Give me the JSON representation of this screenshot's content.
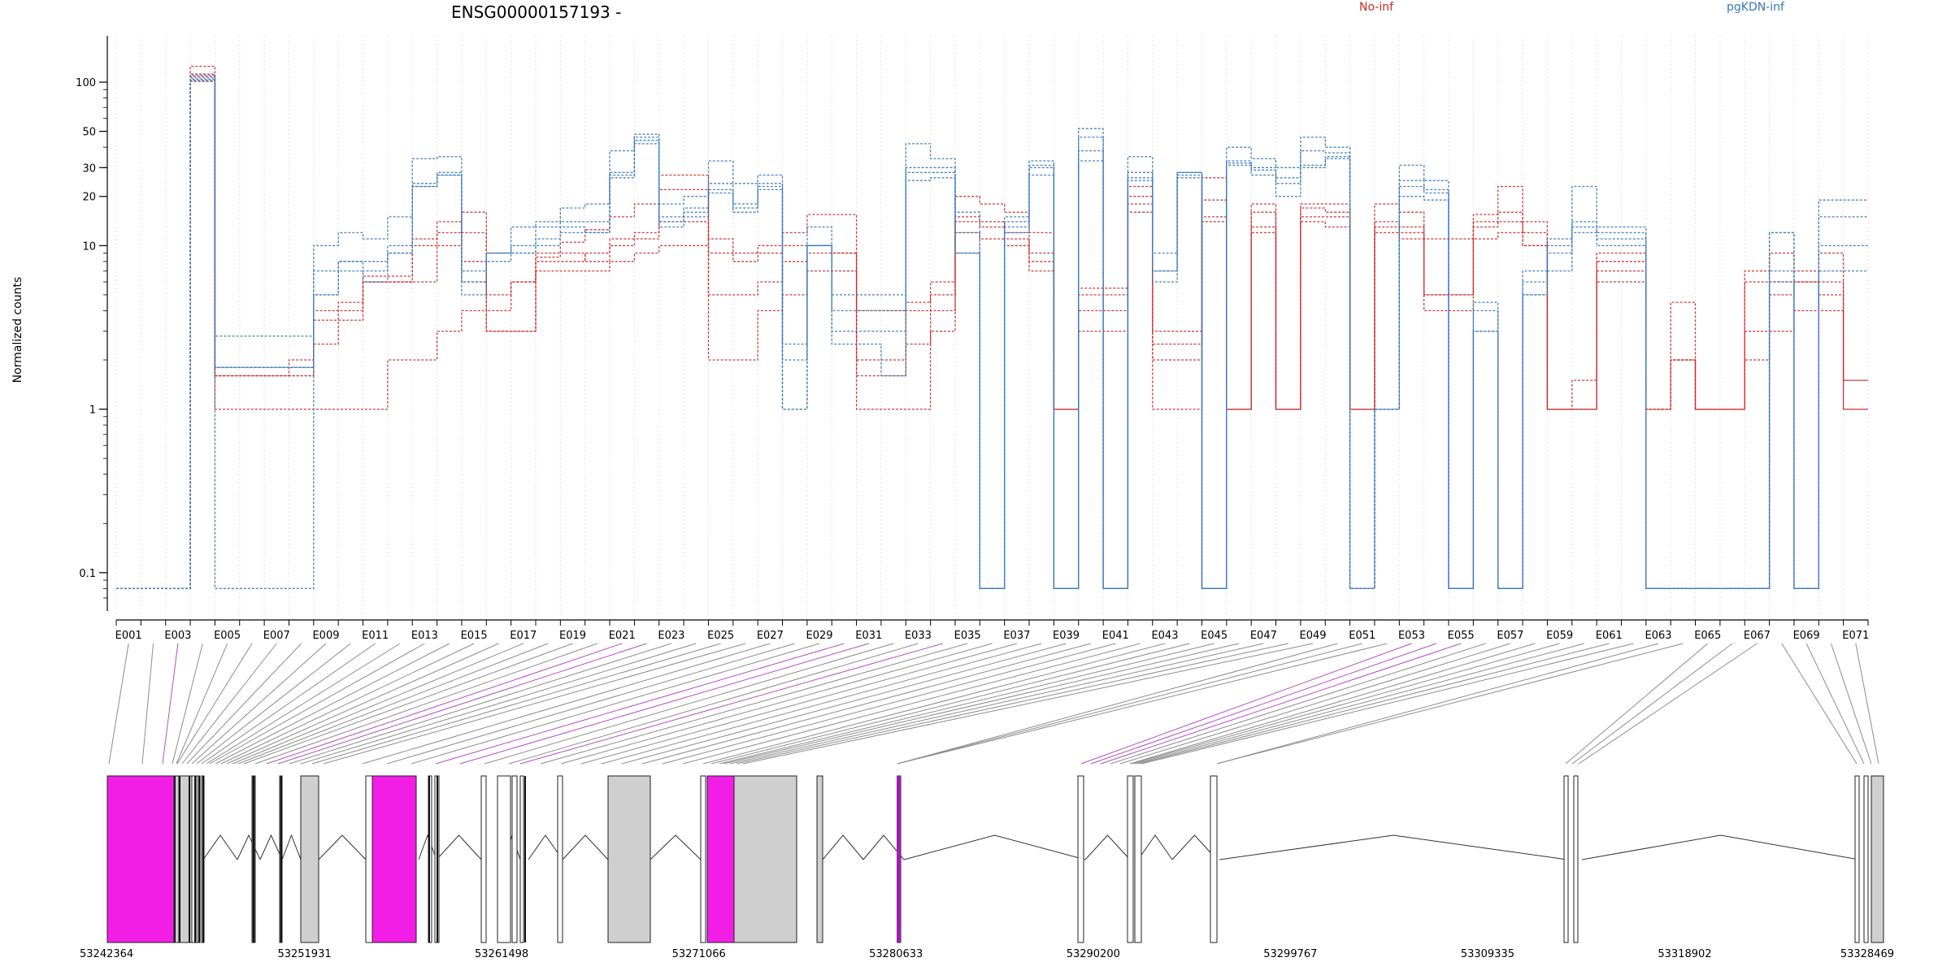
{
  "chart_data": {
    "type": "line",
    "title": "ENSG00000157193 -",
    "ylabel": "Normalized counts",
    "y_scale": "log",
    "ylim": [
      0.07,
      160
    ],
    "y_ticks": [
      {
        "value": 100,
        "label": "100"
      },
      {
        "value": 50,
        "label": "50"
      },
      {
        "value": 30,
        "label": "30"
      },
      {
        "value": 20,
        "label": "20"
      },
      {
        "value": 10,
        "label": "10"
      },
      {
        "value": 1,
        "label": "1"
      },
      {
        "value": 0.1,
        "label": "0.1"
      }
    ],
    "grid": "vertical dotted at each exon boundary",
    "legend": [
      {
        "name": "No-inf",
        "color": "#cc2a2a",
        "position": "top-center"
      },
      {
        "name": "pgKDN-inf",
        "color": "#3a78b8",
        "position": "top-right"
      }
    ],
    "exon_labels": [
      "E001",
      "E003",
      "E005",
      "E007",
      "E009",
      "E011",
      "E013",
      "E015",
      "E017",
      "E019",
      "E021",
      "E023",
      "E025",
      "E027",
      "E029",
      "E031",
      "E033",
      "E035",
      "E037",
      "E039",
      "E041",
      "E043",
      "E045",
      "E047",
      "E049",
      "E051",
      "E053",
      "E055",
      "E057",
      "E059",
      "E061",
      "E063",
      "E065",
      "E067",
      "E069",
      "E071"
    ],
    "exon_count": 71,
    "series": [
      {
        "group": "No-inf",
        "color": "#cc2a2a",
        "values": [
          0.08,
          0.08,
          0.08,
          125,
          1.6,
          1.6,
          1.6,
          1.6,
          3.5,
          3.5,
          6.5,
          6.5,
          11,
          14,
          8,
          4,
          6,
          8.5,
          10.5,
          12.5,
          15,
          18,
          27,
          27,
          11,
          8,
          10,
          12,
          15.5,
          15.5,
          4,
          4,
          4.5,
          6,
          20,
          18,
          16,
          12,
          1,
          5.5,
          5.5,
          23,
          3,
          3,
          26,
          1,
          18,
          1,
          18,
          18,
          1,
          14,
          13,
          11,
          11,
          15.5,
          23,
          14,
          1,
          1.5,
          8,
          8,
          1,
          4.5,
          1,
          1,
          7,
          9,
          7,
          9,
          1.5
        ]
      },
      {
        "group": "No-inf",
        "color": "#cc2a2a",
        "values": [
          0.08,
          0.08,
          0.08,
          112,
          1.6,
          1.6,
          1.6,
          2,
          4,
          4,
          6,
          6,
          6,
          10,
          12,
          3,
          3,
          8,
          8,
          9,
          10,
          11,
          22,
          22,
          9,
          9,
          9,
          10,
          10,
          9,
          2,
          2,
          2.5,
          5,
          15,
          14,
          12,
          9,
          1,
          5,
          5,
          20,
          2,
          2,
          19,
          1,
          16,
          1,
          17,
          16,
          1,
          18,
          16,
          5,
          5,
          13,
          14,
          10,
          1,
          1,
          9,
          9,
          1,
          2,
          1,
          1,
          6,
          6,
          6,
          6,
          1.5
        ]
      },
      {
        "group": "No-inf",
        "color": "#cc2a2a",
        "values": [
          0.08,
          0.08,
          0.08,
          108,
          1,
          1,
          1,
          1,
          1,
          1,
          1,
          2,
          2,
          3,
          4,
          3,
          3,
          7,
          7,
          7,
          8,
          9,
          10,
          10,
          2,
          2,
          4,
          5,
          7,
          7,
          1,
          1,
          1,
          3,
          12,
          11,
          10,
          8,
          1,
          3,
          3,
          16,
          1,
          1,
          15,
          1,
          13,
          1,
          14,
          13,
          1,
          13,
          12,
          4,
          4,
          11,
          12,
          10,
          1,
          1,
          7,
          7,
          1,
          2,
          1,
          1,
          2,
          3,
          4,
          5,
          1
        ]
      },
      {
        "group": "No-inf",
        "color": "#cc2a2a",
        "values": [
          0.08,
          0.08,
          0.08,
          102,
          1.6,
          1.6,
          1.6,
          1.6,
          2.5,
          4.5,
          6,
          6,
          10,
          12,
          16,
          5,
          6,
          9,
          9,
          8,
          11,
          12,
          14,
          14,
          5,
          5,
          6,
          8,
          9,
          9,
          1.6,
          1.6,
          4,
          4,
          14,
          13,
          11,
          7,
          1,
          4,
          4,
          18,
          2.5,
          2.5,
          14,
          1,
          12,
          1,
          15,
          15,
          1,
          12,
          11,
          5,
          5,
          14,
          16,
          12,
          1,
          1,
          6,
          6,
          1,
          2,
          1,
          1,
          3,
          5,
          6,
          4,
          1
        ]
      },
      {
        "group": "pgKDN-inf",
        "color": "#3a78b8",
        "values": [
          0.08,
          0.08,
          0.08,
          110,
          2.8,
          2.8,
          2.8,
          2.8,
          10,
          12,
          11,
          15,
          34,
          35,
          7,
          9,
          13,
          14,
          17,
          18,
          38,
          48,
          18,
          20,
          33,
          24,
          27,
          2.5,
          13,
          5,
          5,
          5,
          42,
          34,
          16,
          0.08,
          15,
          33,
          0.08,
          52,
          0.08,
          35,
          9,
          28,
          0.08,
          40,
          34,
          30,
          46,
          40,
          0.08,
          1,
          31,
          25,
          0.08,
          4.5,
          0.08,
          7,
          11,
          23,
          13,
          13,
          0.08,
          0.08,
          0.08,
          0.08,
          0.08,
          12,
          0.08,
          19,
          19
        ]
      },
      {
        "group": "pgKDN-inf",
        "color": "#3a78b8",
        "values": [
          0.08,
          0.08,
          0.08,
          106,
          1.8,
          1.8,
          1.8,
          1.8,
          7,
          8,
          8,
          10,
          23,
          27,
          6,
          9,
          10,
          13,
          14,
          14,
          28,
          46,
          15,
          17,
          24,
          18,
          24,
          2,
          10,
          4,
          4,
          4,
          30,
          30,
          12,
          0.08,
          14,
          31,
          0.08,
          46,
          0.08,
          28,
          7,
          28,
          0.08,
          33,
          30,
          26,
          38,
          37,
          0.08,
          1,
          25,
          22,
          0.08,
          4,
          0.08,
          6,
          10,
          14,
          12,
          12,
          0.08,
          0.08,
          0.08,
          0.08,
          0.08,
          12,
          0.08,
          15,
          15
        ]
      },
      {
        "group": "pgKDN-inf",
        "color": "#3a78b8",
        "values": [
          0.08,
          0.08,
          0.08,
          104,
          0.08,
          0.08,
          0.08,
          0.08,
          5,
          8,
          7,
          9,
          24,
          28,
          6,
          9,
          9,
          11,
          13,
          12,
          27,
          44,
          14,
          16,
          22,
          17,
          23,
          1,
          10,
          3,
          3,
          3,
          28,
          28,
          9,
          0.08,
          13,
          30,
          0.08,
          38,
          0.08,
          26,
          7,
          27,
          0.08,
          32,
          29,
          24,
          31,
          35,
          0.08,
          1,
          23,
          21,
          0.08,
          3,
          0.08,
          5,
          9,
          13,
          11,
          11,
          0.08,
          0.08,
          0.08,
          0.08,
          0.08,
          7,
          0.08,
          10,
          10
        ]
      },
      {
        "group": "pgKDN-inf",
        "color": "#3a78b8",
        "values": [
          0.08,
          0.08,
          0.08,
          101,
          1.8,
          1.8,
          1.8,
          1.8,
          5,
          7,
          6,
          9,
          23,
          27,
          5,
          8,
          9,
          10,
          12,
          12,
          26,
          42,
          13,
          15,
          21,
          16,
          22,
          1,
          10,
          2.5,
          2.5,
          1.6,
          25,
          26,
          9,
          0.08,
          12,
          27,
          0.08,
          33,
          0.08,
          25,
          6,
          26,
          0.08,
          31,
          27,
          20,
          30,
          34,
          0.08,
          1,
          20,
          19,
          0.08,
          3,
          0.08,
          5,
          7,
          12,
          10,
          10,
          0.08,
          0.08,
          0.08,
          0.08,
          0.08,
          6,
          0.08,
          7,
          7
        ]
      }
    ],
    "genomic_axis": {
      "tick_labels": [
        "53242364",
        "53251931",
        "53261498",
        "53271066",
        "53280633",
        "53290200",
        "53299767",
        "53309335",
        "53318902",
        "53328469"
      ],
      "range": [
        53242364,
        53328469
      ]
    }
  },
  "colors": {
    "no_inf": "#cc2a2a",
    "pgkdn_inf": "#3a78b8",
    "highlight": "#f21ee6",
    "exon_fill": "#cfcfcf",
    "connector": "#909090"
  }
}
